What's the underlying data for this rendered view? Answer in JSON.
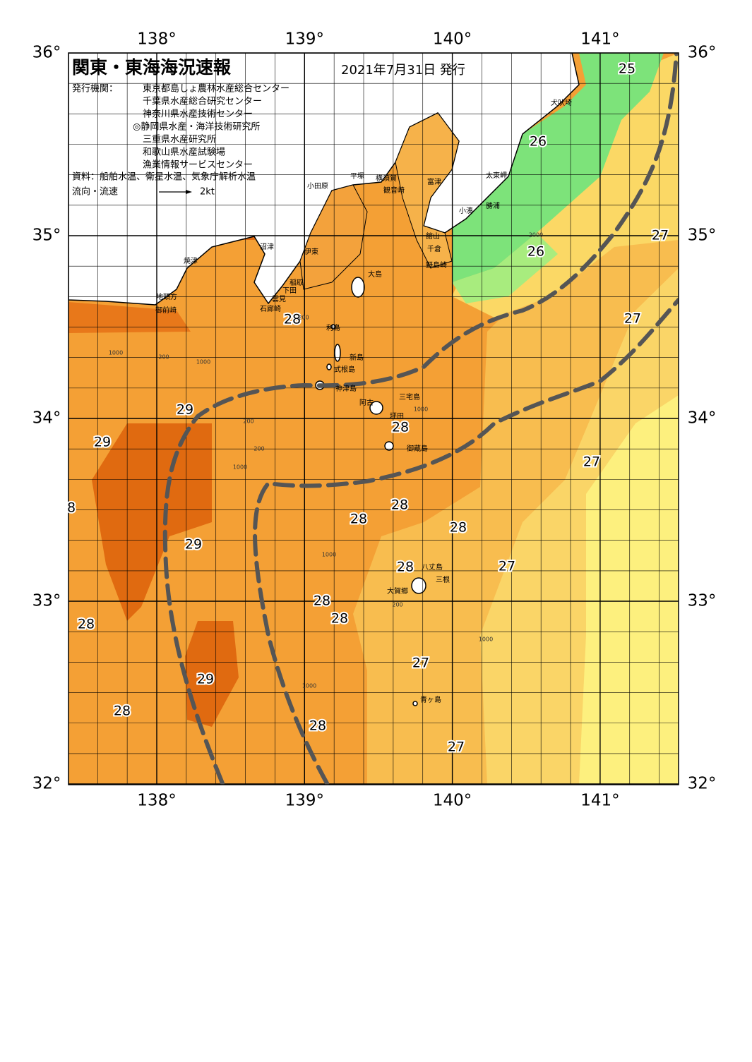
{
  "header": {
    "title": "関東・東海海況速報",
    "date": "2021年7月31日 発行",
    "agency_label": "発行機関：",
    "agencies": [
      "東京都島しょ農林水産総合センター",
      "千葉県水産総合研究センター",
      "神奈川県水産技術センター",
      "◎静岡県水産・海洋技術研究所",
      "三重県水産研究所",
      "和歌山県水産試験場",
      "漁業情報サービスセンター"
    ],
    "source": "資料：船舶水温、衛星水温、気象庁解析水温",
    "flow_label": "流向・流速",
    "flow_scale": "2kt"
  },
  "map": {
    "lon_ticks": [
      {
        "value": 138,
        "label": "138°"
      },
      {
        "value": 139,
        "label": "139°"
      },
      {
        "value": 140,
        "label": "140°"
      },
      {
        "value": 141,
        "label": "141°"
      }
    ],
    "lat_ticks": [
      {
        "value": 36,
        "label": "36°"
      },
      {
        "value": 35,
        "label": "35°"
      },
      {
        "value": 34,
        "label": "34°"
      },
      {
        "value": 33,
        "label": "33°"
      },
      {
        "value": 32,
        "label": "32°"
      }
    ],
    "temperature_labels": [
      "25",
      "26",
      "27",
      "26",
      "28",
      "27",
      "29",
      "28",
      "29",
      "27",
      "8",
      "28",
      "28",
      "28",
      "29",
      "28",
      "27",
      "28",
      "28",
      "28",
      "27",
      "29",
      "28",
      "28",
      "27"
    ],
    "places": [
      "犬吠埼",
      "太東岬",
      "小湊",
      "勝浦",
      "富津",
      "横須賀",
      "観音崎",
      "平塚",
      "小田原",
      "館山",
      "千倉",
      "野島崎",
      "大島",
      "稲取",
      "下田",
      "雲見",
      "石廊崎",
      "沼津",
      "伊東",
      "焼津",
      "地頭方",
      "御前崎",
      "利島",
      "新島",
      "式根島",
      "神津島",
      "三宅島",
      "阿古",
      "坪田",
      "御蔵島",
      "八丈島",
      "三根",
      "大賀郷",
      "青ヶ島"
    ],
    "contour_labels": [
      "1000",
      "200",
      "1000",
      "200",
      "1000",
      "200",
      "1000",
      "1000",
      "200",
      "1000",
      "1000",
      "200",
      "2000"
    ]
  }
}
